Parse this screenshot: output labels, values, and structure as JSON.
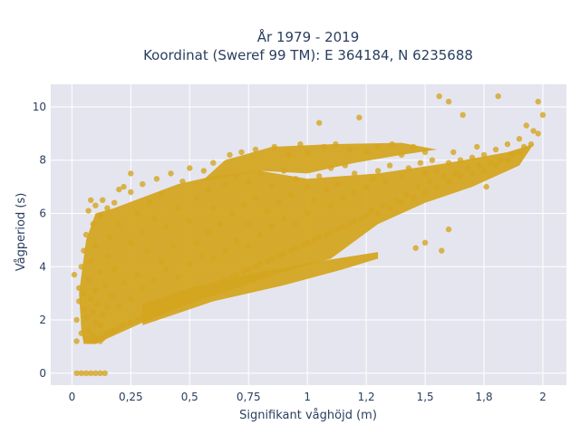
{
  "chart_data": {
    "type": "scatter",
    "title_line1": "År 1979 - 2019",
    "title_line2": "Koordinat (Sweref 99 TM): E 364184, N 6235688",
    "xlabel": "Signifikant våghöjd (m)",
    "ylabel": "Vågperiod (s)",
    "xlim": [
      -0.09,
      2.1
    ],
    "ylim": [
      -0.45,
      10.85
    ],
    "xticks": [
      0,
      0.25,
      0.5,
      0.75,
      1,
      1.25,
      1.5,
      1.75,
      2
    ],
    "xtick_labels": [
      "0",
      "0,25",
      "0,5",
      "0,75",
      "1",
      "1,2",
      "1,5",
      "1,8",
      "2"
    ],
    "yticks": [
      0,
      2,
      4,
      6,
      8,
      10
    ],
    "ytick_labels": [
      "0",
      "2",
      "4",
      "6",
      "8",
      "10"
    ],
    "grid": true,
    "marker_color": "#D4A520",
    "plot_background": "#E5E5EF",
    "points": [
      [
        0.02,
        1.2
      ],
      [
        0.02,
        2.0
      ],
      [
        0.01,
        3.7
      ],
      [
        0.03,
        2.7
      ],
      [
        0.03,
        3.2
      ],
      [
        0.04,
        1.5
      ],
      [
        0.04,
        4.0
      ],
      [
        0.05,
        2.4
      ],
      [
        0.05,
        3.0
      ],
      [
        0.05,
        4.6
      ],
      [
        0.06,
        1.3
      ],
      [
        0.06,
        2.1
      ],
      [
        0.06,
        5.2
      ],
      [
        0.07,
        1.6
      ],
      [
        0.07,
        3.5
      ],
      [
        0.07,
        6.1
      ],
      [
        0.08,
        1.2
      ],
      [
        0.08,
        2.8
      ],
      [
        0.08,
        4.2
      ],
      [
        0.08,
        6.5
      ],
      [
        0.09,
        1.4
      ],
      [
        0.09,
        2.3
      ],
      [
        0.09,
        5.6
      ],
      [
        0.1,
        1.2
      ],
      [
        0.1,
        1.9
      ],
      [
        0.1,
        3.1
      ],
      [
        0.1,
        4.8
      ],
      [
        0.1,
        6.3
      ],
      [
        0.11,
        1.3
      ],
      [
        0.11,
        2.6
      ],
      [
        0.12,
        1.2
      ],
      [
        0.12,
        1.8
      ],
      [
        0.12,
        3.8
      ],
      [
        0.12,
        5.9
      ],
      [
        0.13,
        1.3
      ],
      [
        0.13,
        2.2
      ],
      [
        0.13,
        6.5
      ],
      [
        0.14,
        1.4
      ],
      [
        0.14,
        3.3
      ],
      [
        0.15,
        1.5
      ],
      [
        0.15,
        2.5
      ],
      [
        0.15,
        4.4
      ],
      [
        0.15,
        6.2
      ],
      [
        0.16,
        1.5
      ],
      [
        0.16,
        5.1
      ],
      [
        0.17,
        1.6
      ],
      [
        0.17,
        2.9
      ],
      [
        0.18,
        1.6
      ],
      [
        0.18,
        3.9
      ],
      [
        0.18,
        6.4
      ],
      [
        0.2,
        1.7
      ],
      [
        0.2,
        2.5
      ],
      [
        0.2,
        5.6
      ],
      [
        0.2,
        6.9
      ],
      [
        0.22,
        1.8
      ],
      [
        0.22,
        3.4
      ],
      [
        0.22,
        7.0
      ],
      [
        0.25,
        1.9
      ],
      [
        0.25,
        2.8
      ],
      [
        0.25,
        4.9
      ],
      [
        0.25,
        6.8
      ],
      [
        0.25,
        7.5
      ],
      [
        0.28,
        2.0
      ],
      [
        0.28,
        3.7
      ],
      [
        0.28,
        6.0
      ],
      [
        0.3,
        2.1
      ],
      [
        0.3,
        3.2
      ],
      [
        0.3,
        5.3
      ],
      [
        0.3,
        7.1
      ],
      [
        0.32,
        2.2
      ],
      [
        0.32,
        4.6
      ],
      [
        0.33,
        6.4
      ],
      [
        0.35,
        2.3
      ],
      [
        0.35,
        3.5
      ],
      [
        0.35,
        5.8
      ],
      [
        0.36,
        7.3
      ],
      [
        0.38,
        2.4
      ],
      [
        0.38,
        4.2
      ],
      [
        0.38,
        6.7
      ],
      [
        0.4,
        2.5
      ],
      [
        0.4,
        3.9
      ],
      [
        0.4,
        5.5
      ],
      [
        0.42,
        7.5
      ],
      [
        0.42,
        2.6
      ],
      [
        0.43,
        4.8
      ],
      [
        0.45,
        2.7
      ],
      [
        0.45,
        3.6
      ],
      [
        0.45,
        6.2
      ],
      [
        0.47,
        7.2
      ],
      [
        0.48,
        2.8
      ],
      [
        0.5,
        2.9
      ],
      [
        0.5,
        4.1
      ],
      [
        0.5,
        5.7
      ],
      [
        0.5,
        7.7
      ],
      [
        0.52,
        3.0
      ],
      [
        0.53,
        4.9
      ],
      [
        0.53,
        6.6
      ],
      [
        0.55,
        3.1
      ],
      [
        0.55,
        4.4
      ],
      [
        0.56,
        7.6
      ],
      [
        0.58,
        3.2
      ],
      [
        0.58,
        5.3
      ],
      [
        0.58,
        6.9
      ],
      [
        0.6,
        3.3
      ],
      [
        0.6,
        4.3
      ],
      [
        0.6,
        6.2
      ],
      [
        0.6,
        7.9
      ],
      [
        0.63,
        3.4
      ],
      [
        0.63,
        5.6
      ],
      [
        0.65,
        3.5
      ],
      [
        0.65,
        4.6
      ],
      [
        0.65,
        7.1
      ],
      [
        0.67,
        8.2
      ],
      [
        0.68,
        3.6
      ],
      [
        0.68,
        6.0
      ],
      [
        0.7,
        3.7
      ],
      [
        0.7,
        5.0
      ],
      [
        0.7,
        7.4
      ],
      [
        0.72,
        8.3
      ],
      [
        0.73,
        3.8
      ],
      [
        0.73,
        6.3
      ],
      [
        0.75,
        3.9
      ],
      [
        0.75,
        4.8
      ],
      [
        0.75,
        5.6
      ],
      [
        0.75,
        7.2
      ],
      [
        0.78,
        4.0
      ],
      [
        0.78,
        6.6
      ],
      [
        0.78,
        8.4
      ],
      [
        0.8,
        4.1
      ],
      [
        0.8,
        5.2
      ],
      [
        0.8,
        7.5
      ],
      [
        0.83,
        4.2
      ],
      [
        0.83,
        6.1
      ],
      [
        0.85,
        4.3
      ],
      [
        0.85,
        5.5
      ],
      [
        0.85,
        7.0
      ],
      [
        0.86,
        8.5
      ],
      [
        0.88,
        4.4
      ],
      [
        0.88,
        6.4
      ],
      [
        0.9,
        4.5
      ],
      [
        0.9,
        5.8
      ],
      [
        0.9,
        7.6
      ],
      [
        0.92,
        8.2
      ],
      [
        0.93,
        4.6
      ],
      [
        0.93,
        6.7
      ],
      [
        0.95,
        4.7
      ],
      [
        0.95,
        5.6
      ],
      [
        0.95,
        7.3
      ],
      [
        0.97,
        8.6
      ],
      [
        0.98,
        4.8
      ],
      [
        1.0,
        4.9
      ],
      [
        1.0,
        6.0
      ],
      [
        1.0,
        7.0
      ],
      [
        1.0,
        8.3
      ],
      [
        1.03,
        5.0
      ],
      [
        1.03,
        6.5
      ],
      [
        1.05,
        5.1
      ],
      [
        1.05,
        7.4
      ],
      [
        1.05,
        9.4
      ],
      [
        1.07,
        8.5
      ],
      [
        1.08,
        5.2
      ],
      [
        1.08,
        6.9
      ],
      [
        1.1,
        5.3
      ],
      [
        1.1,
        6.3
      ],
      [
        1.1,
        7.7
      ],
      [
        1.12,
        8.6
      ],
      [
        1.13,
        5.4
      ],
      [
        1.13,
        7.1
      ],
      [
        1.15,
        5.5
      ],
      [
        1.15,
        6.6
      ],
      [
        1.16,
        7.8
      ],
      [
        1.18,
        5.6
      ],
      [
        1.18,
        8.4
      ],
      [
        1.2,
        5.7
      ],
      [
        1.2,
        6.8
      ],
      [
        1.2,
        7.5
      ],
      [
        1.22,
        9.6
      ],
      [
        1.23,
        5.8
      ],
      [
        1.25,
        5.9
      ],
      [
        1.25,
        7.0
      ],
      [
        1.25,
        8.3
      ],
      [
        1.27,
        6.1
      ],
      [
        1.28,
        7.3
      ],
      [
        1.3,
        6.0
      ],
      [
        1.3,
        7.6
      ],
      [
        1.3,
        8.5
      ],
      [
        1.32,
        6.3
      ],
      [
        1.33,
        7.2
      ],
      [
        1.35,
        6.2
      ],
      [
        1.35,
        7.8
      ],
      [
        1.36,
        8.6
      ],
      [
        1.38,
        6.5
      ],
      [
        1.4,
        6.4
      ],
      [
        1.4,
        7.4
      ],
      [
        1.4,
        8.2
      ],
      [
        1.42,
        6.7
      ],
      [
        1.43,
        7.7
      ],
      [
        1.45,
        6.6
      ],
      [
        1.45,
        8.5
      ],
      [
        1.46,
        4.7
      ],
      [
        1.47,
        7.0
      ],
      [
        1.48,
        7.9
      ],
      [
        1.5,
        6.8
      ],
      [
        1.5,
        7.5
      ],
      [
        1.5,
        8.3
      ],
      [
        1.5,
        4.9
      ],
      [
        1.52,
        7.2
      ],
      [
        1.53,
        8.0
      ],
      [
        1.55,
        7.0
      ],
      [
        1.55,
        7.6
      ],
      [
        1.56,
        10.4
      ],
      [
        1.57,
        4.6
      ],
      [
        1.58,
        7.4
      ],
      [
        1.6,
        7.2
      ],
      [
        1.6,
        7.9
      ],
      [
        1.6,
        10.2
      ],
      [
        1.6,
        5.4
      ],
      [
        1.62,
        8.3
      ],
      [
        1.63,
        7.5
      ],
      [
        1.65,
        7.4
      ],
      [
        1.65,
        8.0
      ],
      [
        1.66,
        9.7
      ],
      [
        1.68,
        7.7
      ],
      [
        1.7,
        7.5
      ],
      [
        1.7,
        8.1
      ],
      [
        1.72,
        8.5
      ],
      [
        1.73,
        7.8
      ],
      [
        1.75,
        7.6
      ],
      [
        1.75,
        8.2
      ],
      [
        1.76,
        7.0
      ],
      [
        1.78,
        7.9
      ],
      [
        1.8,
        7.8
      ],
      [
        1.8,
        8.4
      ],
      [
        1.81,
        10.4
      ],
      [
        1.82,
        8.0
      ],
      [
        1.85,
        8.0
      ],
      [
        1.85,
        8.6
      ],
      [
        1.87,
        8.2
      ],
      [
        1.9,
        8.3
      ],
      [
        1.9,
        8.8
      ],
      [
        1.92,
        8.5
      ],
      [
        1.93,
        9.3
      ],
      [
        1.95,
        8.6
      ],
      [
        1.96,
        9.1
      ],
      [
        1.98,
        9.0
      ],
      [
        1.98,
        10.2
      ],
      [
        2.0,
        9.7
      ],
      [
        0.02,
        0.0
      ],
      [
        0.04,
        0.0
      ],
      [
        0.06,
        0.0
      ],
      [
        0.08,
        0.0
      ],
      [
        0.1,
        0.0
      ],
      [
        0.12,
        0.0
      ],
      [
        0.14,
        0.0
      ]
    ]
  }
}
